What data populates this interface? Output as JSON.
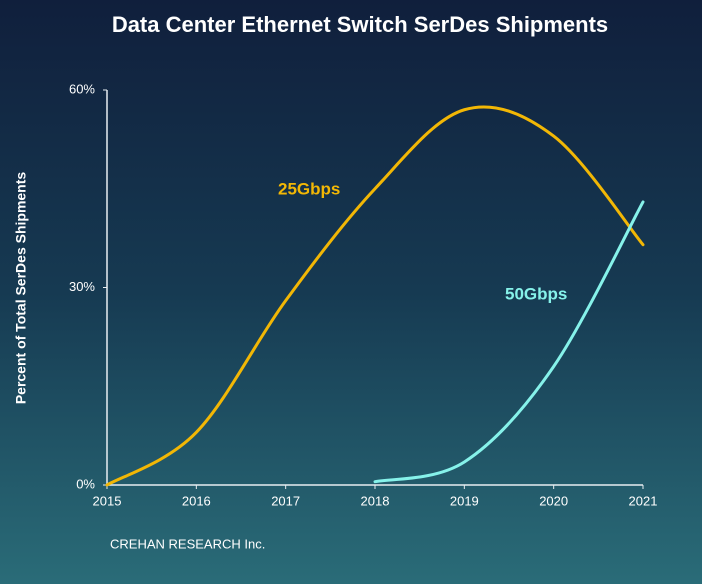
{
  "chart_data": {
    "type": "line",
    "title": "Data Center Ethernet Switch SerDes Shipments",
    "y_label": "Percent of Total SerDes Shipments",
    "source": "CREHAN RESEARCH Inc.",
    "x": [
      2015,
      2016,
      2017,
      2018,
      2019,
      2020,
      2021
    ],
    "xlim": [
      2015,
      2021
    ],
    "xticks": [
      2015,
      2016,
      2017,
      2018,
      2019,
      2020,
      2021
    ],
    "ylim": [
      0,
      60
    ],
    "yticks": [
      {
        "value": 0,
        "label": "0%"
      },
      {
        "value": 30,
        "label": "30%"
      },
      {
        "value": 60,
        "label": "60%"
      }
    ],
    "series": [
      {
        "name": "25Gbps",
        "color": "#f2b705",
        "values": [
          0,
          8,
          28,
          45,
          57,
          53,
          36.5
        ]
      },
      {
        "name": "50Gbps",
        "color": "#86f2ea",
        "values": [
          null,
          null,
          null,
          0.5,
          3.5,
          18,
          43
        ]
      }
    ]
  }
}
